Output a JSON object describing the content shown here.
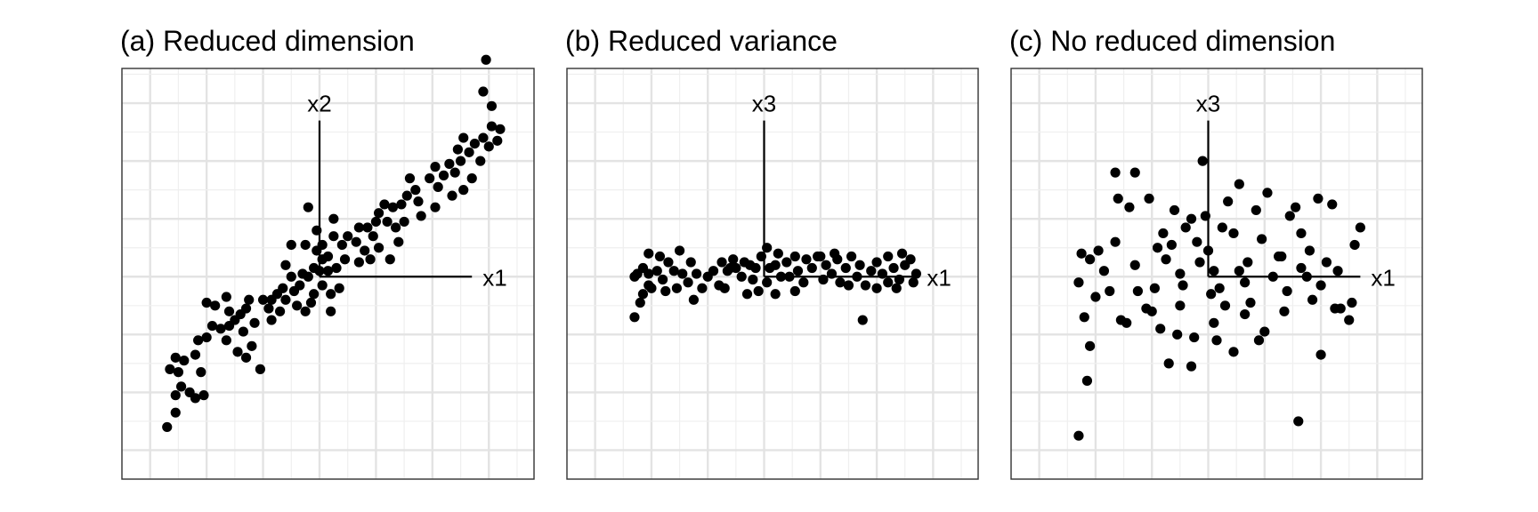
{
  "chart_data": [
    {
      "type": "scatter",
      "title": "(a) Reduced dimension",
      "xlabel": "x1",
      "ylabel": "x2",
      "xlim": [
        -3.5,
        3.8
      ],
      "ylim": [
        -3.5,
        3.6
      ],
      "grid": true,
      "points": [
        [
          -2.7,
          -2.6
        ],
        [
          -2.55,
          -2.35
        ],
        [
          -2.65,
          -1.6
        ],
        [
          -2.5,
          -1.65
        ],
        [
          -2.45,
          -1.9
        ],
        [
          -2.3,
          -2.0
        ],
        [
          -2.55,
          -2.05
        ],
        [
          -2.2,
          -2.1
        ],
        [
          -2.05,
          -2.05
        ],
        [
          -2.1,
          -1.65
        ],
        [
          -2.55,
          -1.4
        ],
        [
          -2.4,
          -1.45
        ],
        [
          -2.2,
          -1.35
        ],
        [
          -2.15,
          -1.1
        ],
        [
          -2.0,
          -1.05
        ],
        [
          -1.9,
          -0.85
        ],
        [
          -1.75,
          -0.9
        ],
        [
          -1.6,
          -0.85
        ],
        [
          -1.65,
          -1.1
        ],
        [
          -1.5,
          -0.75
        ],
        [
          -1.35,
          -0.95
        ],
        [
          -1.2,
          -1.2
        ],
        [
          -1.3,
          -1.4
        ],
        [
          -1.45,
          -1.3
        ],
        [
          -1.6,
          -0.6
        ],
        [
          -1.4,
          -0.65
        ],
        [
          -1.3,
          -0.55
        ],
        [
          -1.15,
          -0.8
        ],
        [
          -1.05,
          -1.6
        ],
        [
          -1.25,
          -0.4
        ],
        [
          -2.0,
          -0.45
        ],
        [
          -1.85,
          -0.5
        ],
        [
          -1.65,
          -0.35
        ],
        [
          -0.85,
          -0.75
        ],
        [
          -0.7,
          -0.6
        ],
        [
          -0.6,
          -0.4
        ],
        [
          -0.85,
          -0.4
        ],
        [
          -1.0,
          -0.4
        ],
        [
          -0.65,
          -0.2
        ],
        [
          -0.45,
          -0.25
        ],
        [
          -0.35,
          -0.15
        ],
        [
          -0.5,
          0.0
        ],
        [
          -0.6,
          0.2
        ],
        [
          -0.3,
          0.05
        ],
        [
          -0.2,
          0.0
        ],
        [
          -0.4,
          -0.5
        ],
        [
          -0.25,
          -0.6
        ],
        [
          -0.15,
          -0.45
        ],
        [
          -0.9,
          -0.55
        ],
        [
          -0.75,
          -0.3
        ],
        [
          -0.1,
          -0.3
        ],
        [
          0.05,
          -0.15
        ],
        [
          0.2,
          -0.3
        ],
        [
          0.35,
          -0.2
        ],
        [
          0.2,
          -0.6
        ],
        [
          -0.25,
          0.55
        ],
        [
          -0.05,
          0.45
        ],
        [
          0.05,
          0.55
        ],
        [
          0.15,
          0.35
        ],
        [
          0.25,
          0.7
        ],
        [
          0.05,
          0.3
        ],
        [
          0.0,
          0.1
        ],
        [
          -0.1,
          0.15
        ],
        [
          0.15,
          0.1
        ],
        [
          0.3,
          0.15
        ],
        [
          0.45,
          0.3
        ],
        [
          0.5,
          0.7
        ],
        [
          0.65,
          0.6
        ],
        [
          0.7,
          0.25
        ],
        [
          0.8,
          0.45
        ],
        [
          0.9,
          0.3
        ],
        [
          0.95,
          0.7
        ],
        [
          0.85,
          0.85
        ],
        [
          1.0,
          0.95
        ],
        [
          1.05,
          1.1
        ],
        [
          1.2,
          0.95
        ],
        [
          1.15,
          1.25
        ],
        [
          1.3,
          1.2
        ],
        [
          1.35,
          0.85
        ],
        [
          1.5,
          0.95
        ],
        [
          1.45,
          1.25
        ],
        [
          1.55,
          1.4
        ],
        [
          1.7,
          1.5
        ],
        [
          1.75,
          1.3
        ],
        [
          1.8,
          1.05
        ],
        [
          1.6,
          1.7
        ],
        [
          1.95,
          1.7
        ],
        [
          2.05,
          1.9
        ],
        [
          2.1,
          1.55
        ],
        [
          2.2,
          1.75
        ],
        [
          2.3,
          1.95
        ],
        [
          2.4,
          1.8
        ],
        [
          2.5,
          2.0
        ],
        [
          2.35,
          1.4
        ],
        [
          2.55,
          1.5
        ],
        [
          2.7,
          1.7
        ],
        [
          2.45,
          2.2
        ],
        [
          2.55,
          2.4
        ],
        [
          2.65,
          2.15
        ],
        [
          2.75,
          2.3
        ],
        [
          2.85,
          2.0
        ],
        [
          2.9,
          2.4
        ],
        [
          3.05,
          2.6
        ],
        [
          3.0,
          2.25
        ],
        [
          3.15,
          2.35
        ],
        [
          3.2,
          2.55
        ],
        [
          3.05,
          2.95
        ],
        [
          2.9,
          3.2
        ],
        [
          2.95,
          3.75
        ],
        [
          1.05,
          0.5
        ],
        [
          0.7,
          0.85
        ],
        [
          0.4,
          0.55
        ],
        [
          2.05,
          1.2
        ],
        [
          1.4,
          0.6
        ],
        [
          1.25,
          0.3
        ],
        [
          -0.2,
          1.2
        ],
        [
          -0.05,
          0.8
        ],
        [
          0.25,
          1.0
        ],
        [
          -0.5,
          0.55
        ]
      ]
    },
    {
      "type": "scatter",
      "title": "(b) Reduced variance",
      "xlabel": "x1",
      "ylabel": "x3",
      "xlim": [
        -3.5,
        3.8
      ],
      "ylim": [
        -3.5,
        3.6
      ],
      "grid": true,
      "points": [
        [
          -2.3,
          -0.7
        ],
        [
          -2.2,
          -0.45
        ],
        [
          -2.15,
          -0.3
        ],
        [
          -2.05,
          -0.15
        ],
        [
          -2.25,
          0.05
        ],
        [
          -2.15,
          0.15
        ],
        [
          -2.05,
          0.05
        ],
        [
          -1.9,
          0.1
        ],
        [
          -1.8,
          -0.05
        ],
        [
          -2.0,
          -0.2
        ],
        [
          -1.85,
          0.35
        ],
        [
          -1.7,
          0.25
        ],
        [
          -1.6,
          0.1
        ],
        [
          -1.5,
          0.45
        ],
        [
          -1.45,
          0.05
        ],
        [
          -1.35,
          -0.1
        ],
        [
          -1.2,
          0.05
        ],
        [
          -1.1,
          -0.2
        ],
        [
          -1.25,
          -0.4
        ],
        [
          -1.0,
          0.0
        ],
        [
          -0.9,
          0.1
        ],
        [
          -0.8,
          -0.15
        ],
        [
          -0.65,
          0.1
        ],
        [
          -0.75,
          0.25
        ],
        [
          -0.55,
          0.3
        ],
        [
          -0.5,
          0.15
        ],
        [
          -0.4,
          0.0
        ],
        [
          -0.35,
          0.25
        ],
        [
          -0.25,
          0.2
        ],
        [
          -0.2,
          -0.05
        ],
        [
          -0.15,
          0.15
        ],
        [
          -0.05,
          0.35
        ],
        [
          0.05,
          0.5
        ],
        [
          0.1,
          0.15
        ],
        [
          0.2,
          0.2
        ],
        [
          0.05,
          -0.1
        ],
        [
          0.3,
          0.0
        ],
        [
          0.4,
          0.25
        ],
        [
          0.45,
          0.0
        ],
        [
          0.55,
          0.35
        ],
        [
          0.6,
          0.1
        ],
        [
          0.7,
          -0.1
        ],
        [
          0.75,
          0.3
        ],
        [
          0.85,
          0.15
        ],
        [
          0.95,
          0.35
        ],
        [
          1.05,
          -0.05
        ],
        [
          1.1,
          0.2
        ],
        [
          1.2,
          0.05
        ],
        [
          1.3,
          0.3
        ],
        [
          1.35,
          -0.1
        ],
        [
          1.45,
          0.15
        ],
        [
          1.55,
          0.35
        ],
        [
          1.65,
          0.0
        ],
        [
          1.7,
          0.2
        ],
        [
          1.8,
          -0.15
        ],
        [
          1.9,
          0.1
        ],
        [
          2.0,
          0.25
        ],
        [
          2.1,
          0.05
        ],
        [
          2.2,
          0.35
        ],
        [
          2.3,
          0.15
        ],
        [
          2.4,
          -0.05
        ],
        [
          2.5,
          0.2
        ],
        [
          2.6,
          0.3
        ],
        [
          2.7,
          0.05
        ],
        [
          2.2,
          -0.1
        ],
        [
          1.75,
          -0.75
        ],
        [
          0.2,
          -0.3
        ],
        [
          -0.3,
          -0.3
        ],
        [
          -0.7,
          -0.2
        ],
        [
          -1.55,
          -0.2
        ],
        [
          -2.05,
          0.4
        ],
        [
          2.0,
          -0.2
        ],
        [
          2.45,
          0.4
        ],
        [
          1.0,
          0.35
        ],
        [
          -0.1,
          -0.25
        ],
        [
          0.55,
          -0.25
        ],
        [
          2.35,
          -0.2
        ],
        [
          -1.75,
          -0.25
        ],
        [
          -0.6,
          0.15
        ],
        [
          0.25,
          0.4
        ],
        [
          1.25,
          0.4
        ],
        [
          1.5,
          -0.15
        ],
        [
          -1.3,
          0.25
        ],
        [
          -2.3,
          0.0
        ],
        [
          2.65,
          -0.1
        ]
      ]
    },
    {
      "type": "scatter",
      "title": "(c) No reduced dimension",
      "xlabel": "x1",
      "ylabel": "x3",
      "xlim": [
        -3.5,
        3.8
      ],
      "ylim": [
        -3.5,
        3.6
      ],
      "grid": true,
      "points": [
        [
          -2.3,
          -2.75
        ],
        [
          -2.15,
          -1.8
        ],
        [
          -2.1,
          -1.2
        ],
        [
          -2.2,
          -0.7
        ],
        [
          -2.3,
          -0.1
        ],
        [
          -2.25,
          0.4
        ],
        [
          -2.1,
          0.3
        ],
        [
          -1.95,
          0.45
        ],
        [
          -1.85,
          0.1
        ],
        [
          -1.75,
          -0.25
        ],
        [
          -1.65,
          0.6
        ],
        [
          -1.6,
          1.35
        ],
        [
          -1.65,
          1.8
        ],
        [
          -1.4,
          1.2
        ],
        [
          -1.3,
          1.8
        ],
        [
          -1.55,
          -0.75
        ],
        [
          -1.25,
          -0.25
        ],
        [
          -1.1,
          -0.55
        ],
        [
          -1.0,
          -0.6
        ],
        [
          -0.95,
          -0.2
        ],
        [
          -0.9,
          0.5
        ],
        [
          -0.8,
          0.75
        ],
        [
          -0.75,
          0.3
        ],
        [
          -0.7,
          -1.5
        ],
        [
          -0.65,
          0.55
        ],
        [
          -0.6,
          1.15
        ],
        [
          -0.5,
          0.05
        ],
        [
          -0.45,
          -0.15
        ],
        [
          -0.4,
          0.85
        ],
        [
          -0.3,
          1.0
        ],
        [
          -0.2,
          0.6
        ],
        [
          -0.15,
          0.25
        ],
        [
          -0.05,
          1.05
        ],
        [
          0.0,
          0.45
        ],
        [
          0.05,
          -0.3
        ],
        [
          0.1,
          -0.8
        ],
        [
          0.15,
          -1.1
        ],
        [
          0.25,
          0.85
        ],
        [
          0.35,
          1.3
        ],
        [
          0.45,
          0.75
        ],
        [
          0.55,
          0.1
        ],
        [
          0.65,
          -0.1
        ],
        [
          0.75,
          -0.45
        ],
        [
          0.85,
          1.15
        ],
        [
          0.95,
          0.65
        ],
        [
          1.05,
          1.45
        ],
        [
          1.15,
          0.0
        ],
        [
          1.25,
          0.35
        ],
        [
          1.35,
          -0.6
        ],
        [
          1.45,
          1.05
        ],
        [
          1.55,
          1.2
        ],
        [
          1.65,
          0.75
        ],
        [
          1.75,
          0.0
        ],
        [
          1.85,
          -0.4
        ],
        [
          1.95,
          1.35
        ],
        [
          2.0,
          -1.35
        ],
        [
          2.1,
          0.25
        ],
        [
          2.2,
          1.25
        ],
        [
          2.3,
          0.1
        ],
        [
          2.35,
          -0.55
        ],
        [
          2.5,
          -0.75
        ],
        [
          2.6,
          0.55
        ],
        [
          2.7,
          0.85
        ],
        [
          1.6,
          -2.5
        ],
        [
          2.0,
          -0.15
        ],
        [
          0.3,
          -0.5
        ],
        [
          0.55,
          1.6
        ],
        [
          -0.1,
          2.0
        ],
        [
          0.2,
          -0.2
        ],
        [
          1.0,
          -0.95
        ],
        [
          -0.3,
          -1.55
        ],
        [
          0.45,
          -1.3
        ],
        [
          1.3,
          0.35
        ],
        [
          -1.05,
          1.35
        ],
        [
          -1.45,
          -0.8
        ],
        [
          -0.55,
          -1.0
        ],
        [
          0.7,
          0.25
        ],
        [
          1.65,
          0.15
        ],
        [
          2.55,
          -0.45
        ],
        [
          -0.85,
          -0.9
        ],
        [
          0.9,
          -1.1
        ],
        [
          2.25,
          -0.55
        ],
        [
          -1.3,
          0.2
        ],
        [
          0.1,
          0.1
        ],
        [
          1.4,
          -0.25
        ],
        [
          -0.25,
          -1.05
        ],
        [
          0.65,
          -0.65
        ],
        [
          -2.0,
          -0.35
        ],
        [
          1.8,
          0.45
        ],
        [
          -0.5,
          -0.5
        ]
      ]
    }
  ]
}
